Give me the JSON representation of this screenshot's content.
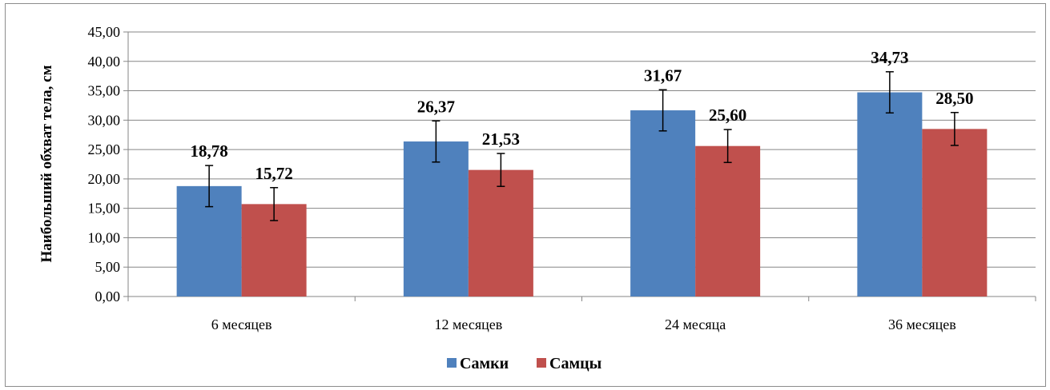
{
  "chart_data": {
    "type": "bar",
    "ylabel": "Наибольший обхват тела, см",
    "xlabel": "",
    "categories": [
      "6 месяцев",
      "12 месяцев",
      "24 месяца",
      "36 месяцев"
    ],
    "series": [
      {
        "name": "Самки",
        "color": "#4f81bd",
        "values": [
          18.78,
          26.37,
          31.67,
          34.73
        ],
        "errors": [
          3.5,
          3.5,
          3.5,
          3.5
        ],
        "labels": [
          "18,78",
          "26,37",
          "31,67",
          "34,73"
        ]
      },
      {
        "name": "Самцы",
        "color": "#c0504d",
        "values": [
          15.72,
          21.53,
          25.6,
          28.5
        ],
        "errors": [
          2.8,
          2.8,
          2.8,
          2.8
        ],
        "labels": [
          "15,72",
          "21,53",
          "25,60",
          "28,50"
        ]
      }
    ],
    "ylim": [
      0,
      45
    ],
    "yticks": [
      0,
      5,
      10,
      15,
      20,
      25,
      30,
      35,
      40,
      45
    ],
    "ytick_labels": [
      "0,00",
      "5,00",
      "10,00",
      "15,00",
      "20,00",
      "25,00",
      "30,00",
      "35,00",
      "40,00",
      "45,00"
    ],
    "grid": true,
    "legend_position": "bottom"
  }
}
